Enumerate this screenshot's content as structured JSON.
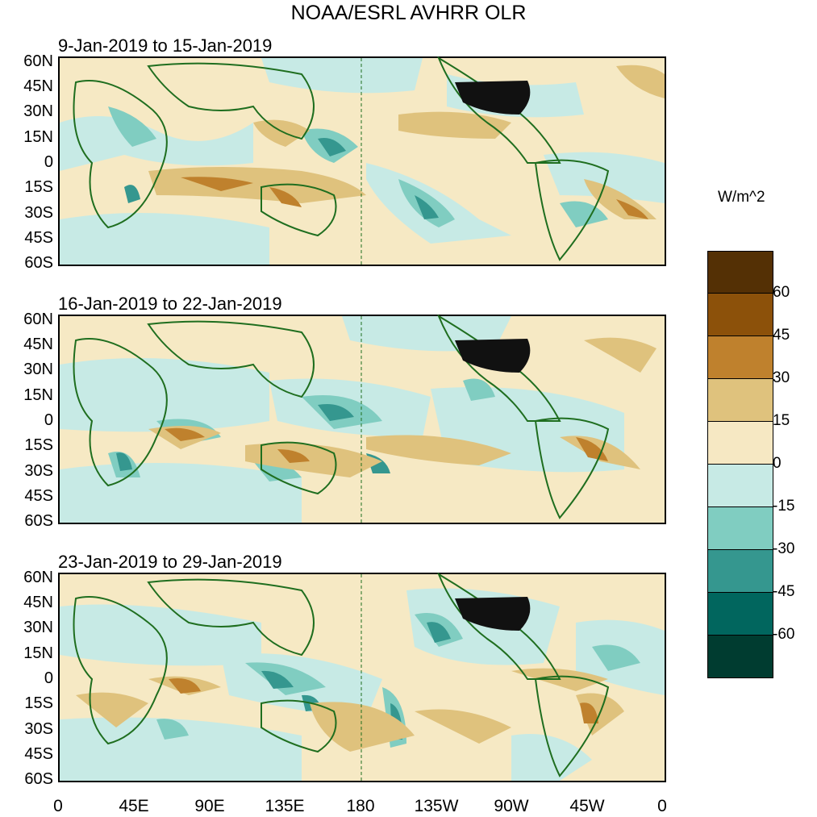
{
  "title": "NOAA/ESRL AVHRR OLR",
  "panels": [
    {
      "title": "9-Jan-2019 to 15-Jan-2019"
    },
    {
      "title": "16-Jan-2019 to 22-Jan-2019"
    },
    {
      "title": "23-Jan-2019 to 29-Jan-2019"
    }
  ],
  "lat_labels": [
    "60N",
    "45N",
    "30N",
    "15N",
    "0",
    "15S",
    "30S",
    "45S",
    "60S"
  ],
  "lon_labels": [
    "0",
    "45E",
    "90E",
    "135E",
    "180",
    "135W",
    "90W",
    "45W",
    "0"
  ],
  "colorbar": {
    "unit": "W/m^2",
    "labels": [
      "60",
      "45",
      "30",
      "15",
      "0",
      "-15",
      "-30",
      "-45",
      "-60"
    ],
    "colors": [
      "#543005",
      "#8c510a",
      "#bf812d",
      "#dfc27d",
      "#f6e8c3",
      "#c7eae5",
      "#80cdc1",
      "#35978f",
      "#01665e",
      "#003c30"
    ]
  },
  "colors": {
    "coastline": "#1f6e1f",
    "ocean_base": "#f6e9c4",
    "land_dark": "#111111"
  }
}
